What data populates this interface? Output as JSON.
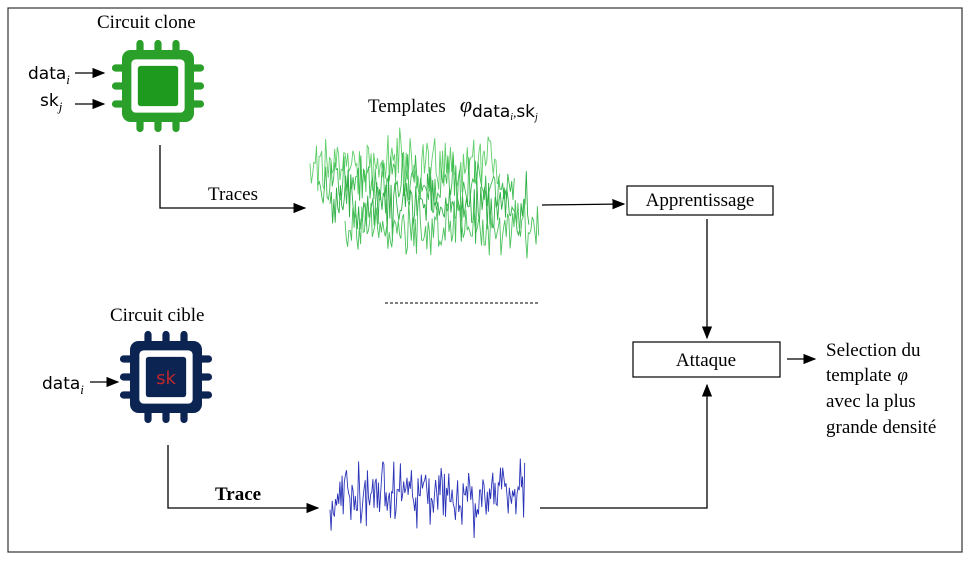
{
  "clone": {
    "title": "Circuit clone",
    "inputs": [
      {
        "text": "data",
        "sub": "i"
      },
      {
        "text": "sk",
        "sub": "j"
      }
    ]
  },
  "templates": {
    "label": "Templates",
    "symbol": "φ",
    "sub_parts": [
      "data",
      "i",
      ",",
      "sk",
      "j"
    ]
  },
  "traces_label": "Traces",
  "learning": "Apprentissage",
  "target": {
    "title": "Circuit cible",
    "key": "sk",
    "inputs": [
      {
        "text": "data",
        "sub": "i"
      }
    ]
  },
  "trace_label": "Trace",
  "attack": "Attaque",
  "result": {
    "lines": [
      "Selection du",
      "template",
      "avec la plus",
      "grande densité"
    ],
    "symbol": "φ"
  }
}
